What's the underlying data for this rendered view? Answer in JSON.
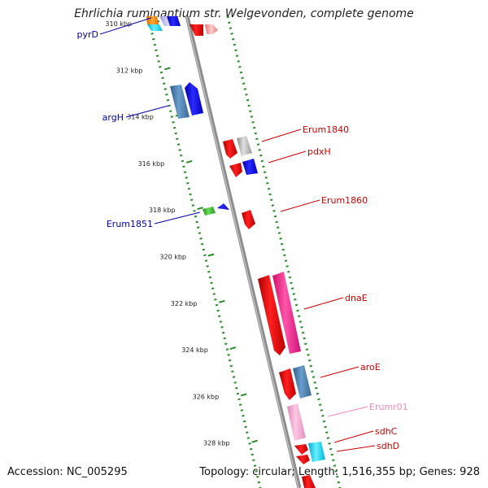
{
  "title": "Ehrlichia ruminantium str. Welgevonden, complete genome",
  "accession": "Accession: NC_005295",
  "summary": "Topology: circular; Length: 1,516,355 bp; Genes: 928",
  "ticks": [
    "310 kbp",
    "312 kbp",
    "314 kbp",
    "316 kbp",
    "318 kbp",
    "320 kbp",
    "322 kbp",
    "324 kbp",
    "326 kbp",
    "328 kbp"
  ],
  "labels": {
    "pyrD": "pyrD",
    "argH": "argH",
    "erum1851": "Erum1851",
    "erum1840": "Erum1840",
    "pdxH": "pdxH",
    "erum1860": "Erum1860",
    "dnaE": "dnaE",
    "aroE": "aroE",
    "erumr01": "Erumr01",
    "sdhC": "sdhC",
    "sdhD": "sdhD"
  },
  "colors": {
    "reverse_label": "#0000aa",
    "forward_label": "#cc0000",
    "rna_label": "#ee88bb",
    "tick_marks": "#2a8a2a",
    "backbone": "#888888"
  }
}
